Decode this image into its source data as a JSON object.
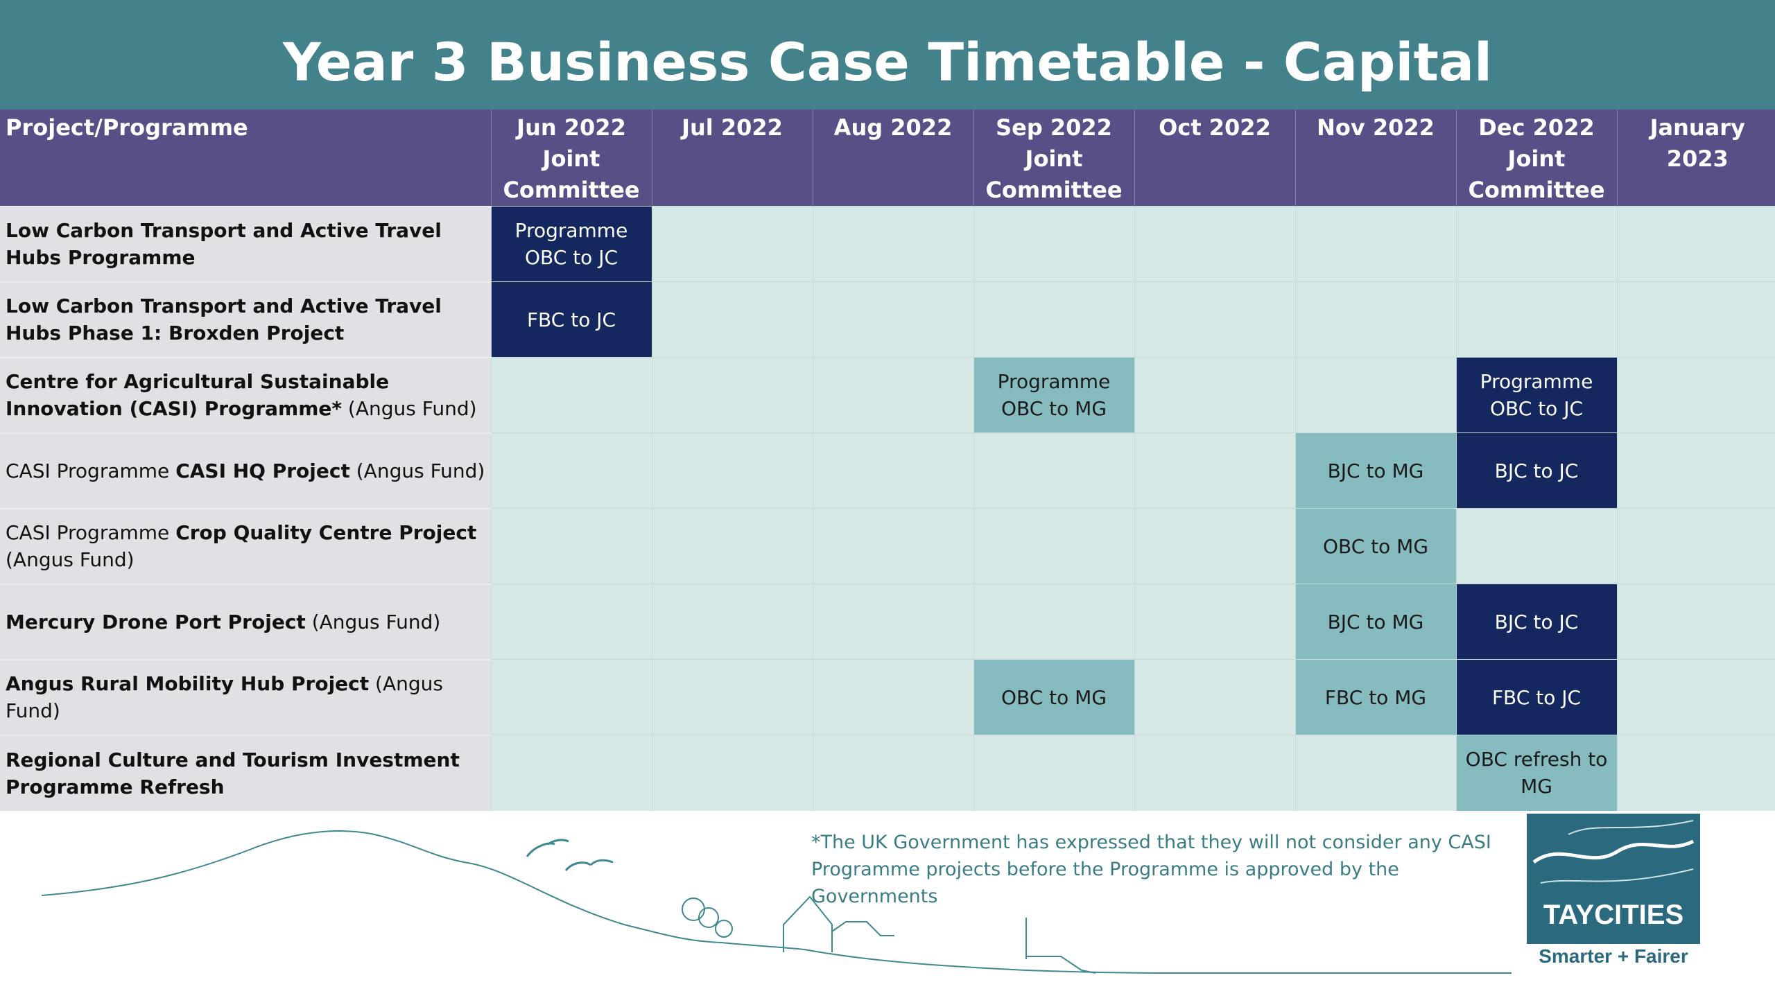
{
  "title": "Year 3 Business Case Timetable - Capital",
  "header": {
    "project_col": "Project/Programme",
    "months": [
      {
        "line1": "Jun 2022",
        "line2": "Joint",
        "line3": "Committee"
      },
      {
        "line1": "Jul 2022",
        "line2": "",
        "line3": ""
      },
      {
        "line1": "Aug 2022",
        "line2": "",
        "line3": ""
      },
      {
        "line1": "Sep 2022",
        "line2": "Joint",
        "line3": "Committee"
      },
      {
        "line1": "Oct 2022",
        "line2": "",
        "line3": ""
      },
      {
        "line1": "Nov 2022",
        "line2": "",
        "line3": ""
      },
      {
        "line1": "Dec 2022",
        "line2": "Joint",
        "line3": "Committee"
      },
      {
        "line1": "January 2023",
        "line2": "",
        "line3": ""
      }
    ]
  },
  "rows": [
    {
      "name_prefix": "",
      "name_bold": "Low Carbon Transport and Active Travel Hubs Programme",
      "name_suffix": "",
      "cells": [
        "Programme OBC to JC",
        "",
        "",
        "",
        "",
        "",
        "",
        ""
      ]
    },
    {
      "name_prefix": "",
      "name_bold": "Low Carbon Transport and Active Travel Hubs Phase 1: Broxden Project",
      "name_suffix": "",
      "cells": [
        "FBC to JC",
        "",
        "",
        "",
        "",
        "",
        "",
        ""
      ]
    },
    {
      "name_prefix": "",
      "name_bold": "Centre for Agricultural Sustainable Innovation (CASI) Programme*",
      "name_suffix": " (Angus Fund)",
      "cells": [
        "",
        "",
        "",
        "Programme OBC to MG",
        "",
        "",
        "Programme OBC to JC",
        ""
      ]
    },
    {
      "name_prefix": "CASI Programme ",
      "name_bold": "CASI HQ Project",
      "name_suffix": " (Angus Fund)",
      "cells": [
        "",
        "",
        "",
        "",
        "",
        "BJC to MG",
        "BJC to JC",
        ""
      ]
    },
    {
      "name_prefix": "CASI Programme ",
      "name_bold": "Crop Quality Centre Project",
      "name_suffix": " (Angus Fund)",
      "cells": [
        "",
        "",
        "",
        "",
        "",
        "OBC to MG",
        "",
        ""
      ]
    },
    {
      "name_prefix": "",
      "name_bold": "Mercury Drone Port Project",
      "name_suffix": " (Angus Fund)",
      "cells": [
        "",
        "",
        "",
        "",
        "",
        "BJC to MG",
        "BJC to JC",
        ""
      ]
    },
    {
      "name_prefix": "",
      "name_bold": "Angus Rural Mobility Hub Project",
      "name_suffix": " (Angus Fund)",
      "cells": [
        "",
        "",
        "",
        "OBC to MG",
        "",
        "FBC to MG",
        "FBC to JC",
        ""
      ]
    },
    {
      "name_prefix": "",
      "name_bold": "Regional Culture and Tourism Investment Programme Refresh",
      "name_suffix": "",
      "cells": [
        "",
        "",
        "",
        "",
        "",
        "",
        "OBC refresh to MG",
        ""
      ]
    }
  ],
  "cell_styles": [
    [
      "dark",
      "",
      "",
      "",
      "",
      "",
      "",
      ""
    ],
    [
      "dark",
      "",
      "",
      "",
      "",
      "",
      "",
      ""
    ],
    [
      "",
      "",
      "",
      "teal",
      "",
      "",
      "dark",
      ""
    ],
    [
      "",
      "",
      "",
      "",
      "",
      "teal",
      "dark",
      ""
    ],
    [
      "",
      "",
      "",
      "",
      "",
      "teal",
      "",
      ""
    ],
    [
      "",
      "",
      "",
      "",
      "",
      "teal",
      "dark",
      ""
    ],
    [
      "",
      "",
      "",
      "teal",
      "",
      "teal",
      "dark",
      ""
    ],
    [
      "",
      "",
      "",
      "",
      "",
      "",
      "teal",
      ""
    ]
  ],
  "footnote": "*The UK Government has expressed that they will not consider any CASI Programme projects before the Programme is approved by the Governments",
  "logo": {
    "name": "TAYCITIES",
    "tagline": "Smarter + Fairer"
  },
  "colors": {
    "header": "#574f86",
    "title_bar": "#43828a",
    "dark_cell": "#14275e",
    "teal_cell": "#86bcc0",
    "row_bg": "#d6e8e6",
    "project_bg": "#e0e0e5"
  }
}
